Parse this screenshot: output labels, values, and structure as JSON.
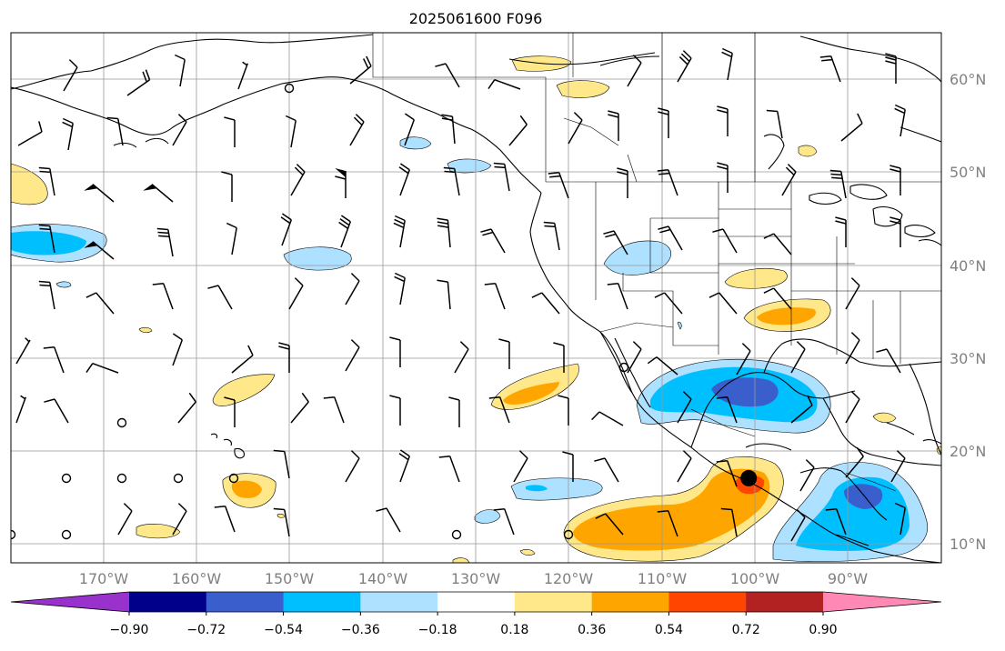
{
  "title": "2025061600 F096",
  "lon_labels": [
    "170°W",
    "160°W",
    "150°W",
    "140°W",
    "130°W",
    "120°W",
    "110°W",
    "100°W",
    "90°W"
  ],
  "lat_labels": [
    "60°N",
    "50°N",
    "40°N",
    "30°N",
    "20°N",
    "10°N"
  ],
  "colorbar": {
    "ticks": [
      "−0.90",
      "−0.72",
      "−0.54",
      "−0.36",
      "−0.18",
      "0.18",
      "0.36",
      "0.54",
      "0.72",
      "0.90"
    ],
    "colors": [
      "#9932cc",
      "#00008b",
      "#3a5fcd",
      "#00bfff",
      "#aee0ff",
      "#ffffff",
      "#ffe88a",
      "#ffa500",
      "#ff4500",
      "#b22222",
      "#ff88b4"
    ]
  },
  "colors": {
    "coast": "#000000",
    "grid": "#999999",
    "barb": "#000000",
    "blue_light": "#aee0ff",
    "blue": "#00bfff",
    "blue_dark": "#3a5fcd",
    "yellow": "#ffe88a",
    "orange": "#ffa500",
    "red_orange": "#ff4500"
  },
  "marker": {
    "lon": -100.7,
    "lat": 17.1
  }
}
